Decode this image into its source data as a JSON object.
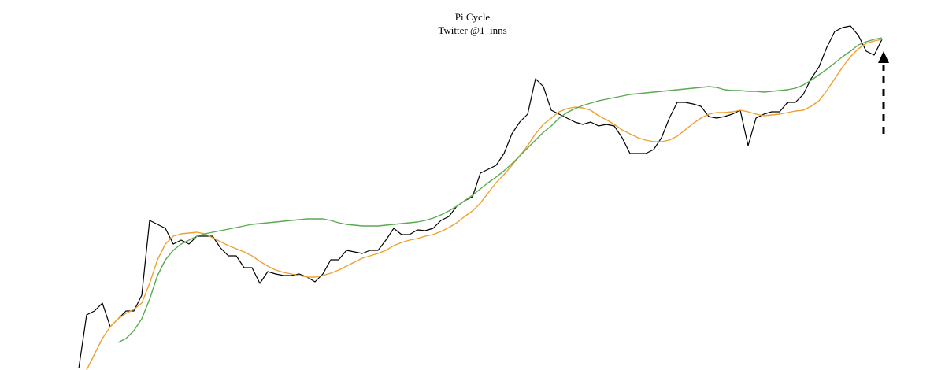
{
  "chart_data": {
    "type": "line",
    "title": "Pi Cycle",
    "subtitle": "Twitter @1_inns",
    "xlim": [
      -10,
      110
    ],
    "ylim": [
      0,
      470
    ],
    "x": [
      0,
      1,
      2,
      3,
      4,
      5,
      6,
      7,
      8,
      9,
      10,
      11,
      12,
      13,
      14,
      15,
      16,
      17,
      18,
      19,
      20,
      21,
      22,
      23,
      24,
      25,
      26,
      27,
      28,
      29,
      30,
      31,
      32,
      33,
      34,
      35,
      36,
      37,
      38,
      39,
      40,
      41,
      42,
      43,
      44,
      45,
      46,
      47,
      48,
      49,
      50,
      51,
      52,
      53,
      54,
      55,
      56,
      57,
      58,
      59,
      60,
      61,
      62,
      63,
      64,
      65,
      66,
      67,
      68,
      69,
      70,
      71,
      72,
      73,
      74,
      75,
      76,
      77,
      78,
      79,
      80,
      81,
      82,
      83,
      84,
      85,
      86,
      87,
      88,
      89,
      90,
      91,
      92,
      93,
      94,
      95,
      96,
      97,
      98,
      99,
      100,
      101,
      102
    ],
    "series": [
      {
        "color": "#000000",
        "values": [
          2,
          70,
          75,
          85,
          55,
          65,
          75,
          75,
          95,
          190,
          185,
          180,
          160,
          165,
          160,
          170,
          170,
          170,
          155,
          145,
          145,
          130,
          130,
          110,
          125,
          122,
          120,
          120,
          122,
          118,
          112,
          122,
          140,
          140,
          152,
          150,
          148,
          152,
          152,
          165,
          180,
          172,
          172,
          178,
          177,
          180,
          190,
          195,
          208,
          215,
          220,
          250,
          255,
          260,
          275,
          300,
          315,
          325,
          370,
          360,
          330,
          325,
          320,
          315,
          312,
          315,
          310,
          312,
          310,
          295,
          275,
          275,
          275,
          280,
          295,
          320,
          340,
          340,
          338,
          335,
          322,
          320,
          322,
          325,
          330,
          285,
          320,
          325,
          328,
          328,
          340,
          340,
          350,
          370,
          385,
          410,
          430,
          435,
          437,
          425,
          405,
          400,
          420
        ]
      },
      {
        "color": "#f0a030",
        "values": [
          null,
          0,
          20,
          40,
          55,
          65,
          72,
          77,
          85,
          110,
          140,
          160,
          170,
          173,
          174,
          175,
          173,
          168,
          163,
          158,
          154,
          150,
          145,
          138,
          132,
          127,
          124,
          122,
          120,
          118,
          118,
          120,
          123,
          127,
          132,
          137,
          142,
          145,
          148,
          152,
          158,
          162,
          165,
          167,
          170,
          172,
          176,
          181,
          187,
          195,
          202,
          212,
          225,
          238,
          248,
          260,
          272,
          285,
          300,
          312,
          320,
          328,
          332,
          334,
          333,
          330,
          323,
          318,
          312,
          305,
          300,
          295,
          292,
          290,
          290,
          292,
          297,
          305,
          313,
          320,
          325,
          327,
          327,
          328,
          330,
          328,
          325,
          323,
          324,
          325,
          327,
          329,
          330,
          335,
          342,
          355,
          370,
          385,
          398,
          408,
          415,
          418,
          420
        ]
      },
      {
        "color": "#5aaa50",
        "values": [
          null,
          null,
          null,
          null,
          null,
          35,
          40,
          50,
          65,
          90,
          120,
          140,
          152,
          160,
          165,
          170,
          173,
          175,
          177,
          179,
          181,
          183,
          185,
          186,
          187,
          188,
          189,
          190,
          191,
          192,
          192,
          192,
          190,
          187,
          185,
          184,
          183,
          183,
          183,
          184,
          185,
          186,
          187,
          188,
          190,
          193,
          197,
          202,
          208,
          215,
          222,
          230,
          238,
          245,
          253,
          262,
          272,
          282,
          292,
          302,
          310,
          320,
          327,
          332,
          336,
          339,
          342,
          344,
          346,
          348,
          350,
          351,
          352,
          353,
          354,
          355,
          356,
          357,
          358,
          359,
          360,
          359,
          356,
          355,
          355,
          354,
          354,
          353,
          354,
          355,
          356,
          358,
          362,
          368,
          375,
          382,
          390,
          398,
          405,
          413,
          417,
          420,
          422
        ]
      }
    ]
  }
}
